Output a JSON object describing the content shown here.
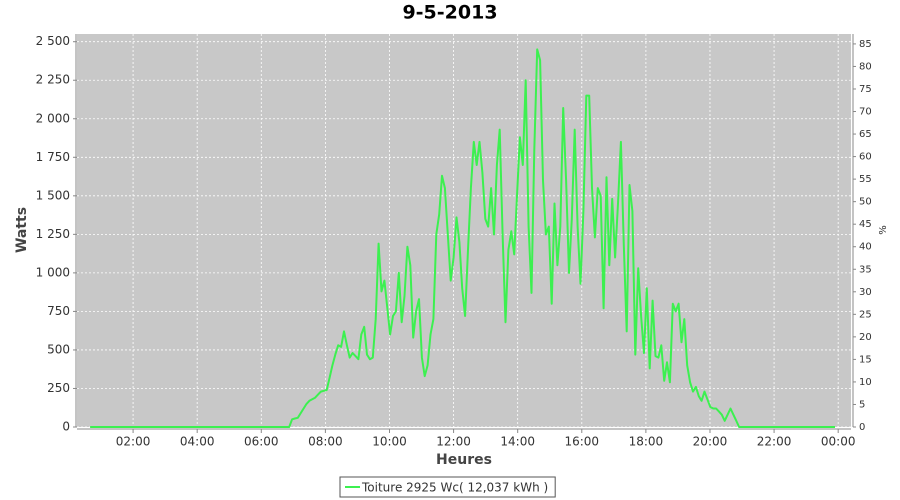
{
  "chart_data": {
    "type": "line",
    "title": "9-5-2013",
    "x_label": "Heures",
    "y_label": "Watts",
    "y2_label": "%",
    "x": [
      0.66,
      2,
      4,
      6,
      6.87,
      6.96,
      7.05,
      7.14,
      7.23,
      7.32,
      7.41,
      7.5,
      7.59,
      7.68,
      7.77,
      7.86,
      7.95,
      8.04,
      8.13,
      8.22,
      8.31,
      8.4,
      8.49,
      8.58,
      8.67,
      8.76,
      8.85,
      8.94,
      9.03,
      9.12,
      9.21,
      9.3,
      9.39,
      9.48,
      9.57,
      9.66,
      9.75,
      9.84,
      9.93,
      10.02,
      10.11,
      10.2,
      10.29,
      10.38,
      10.47,
      10.56,
      10.65,
      10.74,
      10.83,
      10.92,
      11.01,
      11.1,
      11.19,
      11.28,
      11.37,
      11.46,
      11.55,
      11.64,
      11.73,
      11.82,
      11.91,
      12,
      12.09,
      12.18,
      12.27,
      12.36,
      12.45,
      12.54,
      12.63,
      12.72,
      12.81,
      12.9,
      12.99,
      13.08,
      13.17,
      13.26,
      13.35,
      13.44,
      13.53,
      13.62,
      13.71,
      13.8,
      13.89,
      13.98,
      14.07,
      14.16,
      14.25,
      14.34,
      14.43,
      14.52,
      14.61,
      14.7,
      14.79,
      14.88,
      14.97,
      15.06,
      15.15,
      15.24,
      15.33,
      15.42,
      15.51,
      15.6,
      15.69,
      15.78,
      15.87,
      15.96,
      16.05,
      16.14,
      16.23,
      16.32,
      16.41,
      16.5,
      16.59,
      16.68,
      16.77,
      16.86,
      16.95,
      17.04,
      17.13,
      17.22,
      17.31,
      17.4,
      17.49,
      17.58,
      17.67,
      17.76,
      17.85,
      17.94,
      18.03,
      18.12,
      18.21,
      18.3,
      18.39,
      18.48,
      18.57,
      18.66,
      18.75,
      18.84,
      18.93,
      19.02,
      19.11,
      19.2,
      19.29,
      19.38,
      19.47,
      19.56,
      19.65,
      19.74,
      19.83,
      19.92,
      20.01,
      20.1,
      20.19,
      20.28,
      20.37,
      20.46,
      20.55,
      20.64,
      20.73,
      20.82,
      20.91,
      23.9
    ],
    "series": [
      {
        "name": "Toiture 2925 Wc( 12,037 kWh )",
        "color": "#3cf050",
        "values": [
          0,
          0,
          0,
          0,
          0,
          50,
          55,
          60,
          90,
          120,
          150,
          170,
          180,
          190,
          210,
          230,
          235,
          240,
          320,
          400,
          470,
          530,
          520,
          620,
          530,
          450,
          480,
          460,
          440,
          600,
          650,
          470,
          440,
          450,
          700,
          1190,
          880,
          950,
          780,
          600,
          720,
          750,
          1000,
          680,
          850,
          1170,
          1050,
          580,
          750,
          830,
          450,
          330,
          400,
          600,
          700,
          1250,
          1380,
          1630,
          1550,
          1250,
          950,
          1100,
          1360,
          1200,
          900,
          720,
          1150,
          1550,
          1850,
          1700,
          1850,
          1650,
          1350,
          1300,
          1550,
          1250,
          1700,
          1930,
          1250,
          680,
          1150,
          1270,
          1120,
          1500,
          1880,
          1700,
          2250,
          1300,
          870,
          1800,
          2450,
          2380,
          1600,
          1250,
          1300,
          800,
          1450,
          1050,
          1300,
          2070,
          1600,
          1000,
          1350,
          1930,
          1300,
          930,
          1400,
          2150,
          2150,
          1550,
          1230,
          1550,
          1500,
          770,
          1620,
          1050,
          1480,
          1100,
          1450,
          1850,
          1180,
          620,
          1570,
          1400,
          470,
          1030,
          720,
          480,
          900,
          380,
          820,
          460,
          450,
          530,
          300,
          420,
          290,
          800,
          750,
          800,
          550,
          700,
          400,
          290,
          230,
          260,
          200,
          170,
          230,
          180,
          130,
          120,
          120,
          100,
          80,
          40,
          80,
          120,
          80,
          40,
          0,
          0
        ]
      }
    ],
    "xlim": [
      0.25,
      24.4
    ],
    "xticks": [
      {
        "value": 2,
        "label": "02:00"
      },
      {
        "value": 4,
        "label": "04:00"
      },
      {
        "value": 6,
        "label": "06:00"
      },
      {
        "value": 8,
        "label": "08:00"
      },
      {
        "value": 10,
        "label": "10:00"
      },
      {
        "value": 12,
        "label": "12:00"
      },
      {
        "value": 14,
        "label": "14:00"
      },
      {
        "value": 16,
        "label": "16:00"
      },
      {
        "value": 18,
        "label": "18:00"
      },
      {
        "value": 20,
        "label": "20:00"
      },
      {
        "value": 22,
        "label": "22:00"
      },
      {
        "value": 24,
        "label": "00:00"
      }
    ],
    "ylim": [
      0,
      2550
    ],
    "yticks": [
      0,
      250,
      500,
      750,
      {
        "value": 1000,
        "label": "1 000"
      },
      {
        "value": 1250,
        "label": "1 250"
      },
      {
        "value": 1500,
        "label": "1 500"
      },
      {
        "value": 1750,
        "label": "1 750"
      },
      {
        "value": 2000,
        "label": "2 000"
      },
      {
        "value": 2250,
        "label": "2 250"
      },
      {
        "value": 2500,
        "label": "2 500"
      }
    ],
    "y2lim": [
      0,
      87.2
    ],
    "y2ticks": [
      0,
      5,
      10,
      15,
      20,
      25,
      30,
      35,
      40,
      45,
      50,
      55,
      60,
      65,
      70,
      75,
      80,
      85
    ],
    "grid": true,
    "legend": "bottom"
  }
}
